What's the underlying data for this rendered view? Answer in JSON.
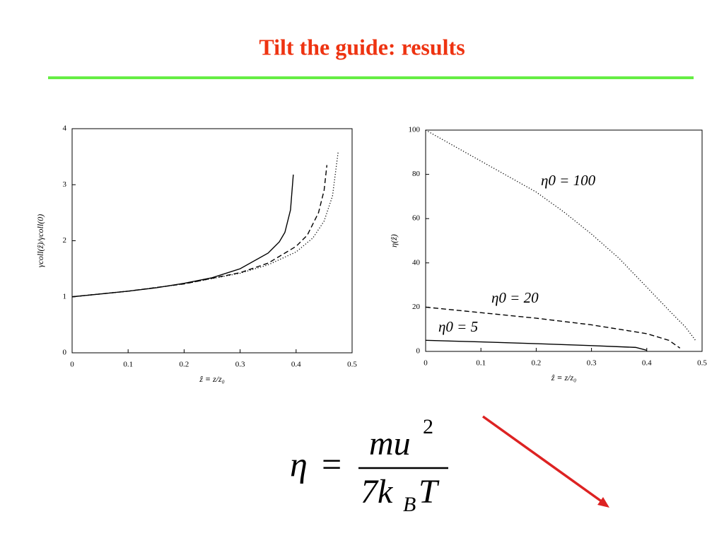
{
  "slide": {
    "title": "Tilt the guide: results"
  },
  "chart_data": [
    {
      "type": "line",
      "xlabel": "ẑ ≡ z/z₀",
      "ylabel": "γcoll(ẑ)/γcoll(0)",
      "xlim": [
        0,
        0.5
      ],
      "ylim": [
        0,
        4
      ],
      "xticks": [
        0,
        0.1,
        0.2,
        0.3,
        0.4,
        0.5
      ],
      "yticks": [
        0,
        1,
        2,
        3,
        4
      ],
      "series": [
        {
          "color": "#000000",
          "dash": "solid",
          "x": [
            0,
            0.05,
            0.1,
            0.15,
            0.2,
            0.25,
            0.3,
            0.35,
            0.37,
            0.38,
            0.39,
            0.395
          ],
          "values": [
            1,
            1.05,
            1.1,
            1.16,
            1.24,
            1.34,
            1.5,
            1.78,
            1.98,
            2.15,
            2.55,
            3.18
          ]
        },
        {
          "color": "#000000",
          "dash": "dashed",
          "x": [
            0,
            0.1,
            0.2,
            0.3,
            0.35,
            0.4,
            0.42,
            0.44,
            0.45,
            0.455
          ],
          "values": [
            1,
            1.1,
            1.23,
            1.43,
            1.6,
            1.9,
            2.1,
            2.5,
            2.9,
            3.35
          ]
        },
        {
          "color": "#000000",
          "dash": "dotted",
          "x": [
            0,
            0.1,
            0.2,
            0.3,
            0.35,
            0.4,
            0.43,
            0.45,
            0.465,
            0.475
          ],
          "values": [
            1,
            1.1,
            1.23,
            1.42,
            1.57,
            1.8,
            2.05,
            2.35,
            2.8,
            3.58
          ]
        }
      ]
    },
    {
      "type": "line",
      "xlabel": "ẑ ≡ z/z₀",
      "ylabel": "η(ẑ)",
      "xlim": [
        0,
        0.5
      ],
      "ylim": [
        0,
        100
      ],
      "xticks": [
        0,
        0.1,
        0.2,
        0.3,
        0.4,
        0.5
      ],
      "yticks": [
        0,
        20,
        40,
        60,
        80,
        100
      ],
      "series": [
        {
          "name": "η0 = 100",
          "color": "#000000",
          "dash": "dotted",
          "x": [
            0,
            0.05,
            0.1,
            0.15,
            0.2,
            0.25,
            0.3,
            0.35,
            0.4,
            0.45,
            0.47,
            0.488
          ],
          "values": [
            100,
            93,
            86,
            79,
            72,
            63,
            53,
            42,
            29,
            16,
            11,
            5
          ]
        },
        {
          "name": "η0 = 20",
          "color": "#000000",
          "dash": "dashed",
          "x": [
            0,
            0.1,
            0.2,
            0.3,
            0.4,
            0.44,
            0.46
          ],
          "values": [
            20,
            17.5,
            15,
            12,
            8,
            5,
            1.5
          ]
        },
        {
          "name": "η0 = 5",
          "color": "#000000",
          "dash": "solid",
          "x": [
            0,
            0.1,
            0.2,
            0.3,
            0.38,
            0.4
          ],
          "values": [
            5,
            4.3,
            3.5,
            2.6,
            1.8,
            0.5
          ]
        }
      ]
    }
  ],
  "formula": {
    "lhs": "η",
    "eq": "=",
    "num": [
      "mu",
      "2"
    ],
    "den": [
      "7k",
      "B",
      "T"
    ]
  }
}
